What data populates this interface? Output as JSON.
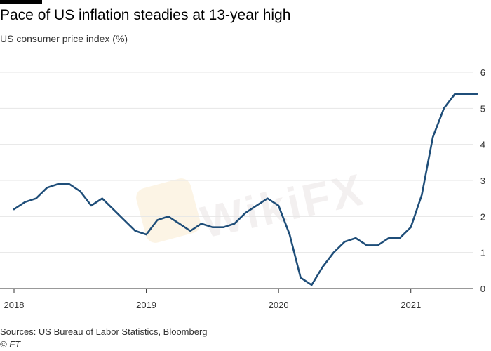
{
  "header": {
    "title": "Pace of US inflation steadies at 13-year high",
    "subtitle": "US consumer price index (%)"
  },
  "footer": {
    "source": "Sources: US Bureau of Labor Statistics, Bloomberg",
    "credit": "© FT"
  },
  "watermark": {
    "text": "WikiFX"
  },
  "colors": {
    "line": "#1f4e79",
    "grid": "#e6e6e6",
    "axis": "#333333",
    "tick_text": "#333333"
  },
  "chart_data": {
    "type": "line",
    "title": "Pace of US inflation steadies at 13-year high",
    "subtitle": "US consumer price index (%)",
    "xlabel": "",
    "ylabel": "",
    "ylim": [
      0,
      6
    ],
    "yticks": [
      0,
      1,
      2,
      3,
      4,
      5,
      6
    ],
    "y_axis_side": "right",
    "grid": "horizontal",
    "legend": "none",
    "xticks": [
      {
        "label": "2018",
        "date": "2018-01"
      },
      {
        "label": "2019",
        "date": "2019-01"
      },
      {
        "label": "2020",
        "date": "2020-01"
      },
      {
        "label": "2021",
        "date": "2021-01"
      }
    ],
    "x": [
      "2018-01",
      "2018-02",
      "2018-03",
      "2018-04",
      "2018-05",
      "2018-06",
      "2018-07",
      "2018-08",
      "2018-09",
      "2018-10",
      "2018-11",
      "2018-12",
      "2019-01",
      "2019-02",
      "2019-03",
      "2019-04",
      "2019-05",
      "2019-06",
      "2019-07",
      "2019-08",
      "2019-09",
      "2019-10",
      "2019-11",
      "2019-12",
      "2020-01",
      "2020-02",
      "2020-03",
      "2020-04",
      "2020-05",
      "2020-06",
      "2020-07",
      "2020-08",
      "2020-09",
      "2020-10",
      "2020-11",
      "2020-12",
      "2021-01",
      "2021-02",
      "2021-03",
      "2021-04",
      "2021-05",
      "2021-06",
      "2021-07"
    ],
    "series": [
      {
        "values": [
          2.2,
          2.4,
          2.5,
          2.8,
          2.9,
          2.9,
          2.7,
          2.3,
          2.5,
          2.2,
          1.9,
          1.6,
          1.5,
          1.9,
          2.0,
          1.8,
          1.6,
          1.8,
          1.7,
          1.7,
          1.8,
          2.1,
          2.3,
          2.5,
          2.3,
          1.5,
          0.3,
          0.1,
          0.6,
          1.0,
          1.3,
          1.4,
          1.2,
          1.2,
          1.4,
          1.4,
          1.7,
          2.6,
          4.2,
          5.0,
          5.4,
          5.4,
          5.4
        ]
      }
    ]
  }
}
